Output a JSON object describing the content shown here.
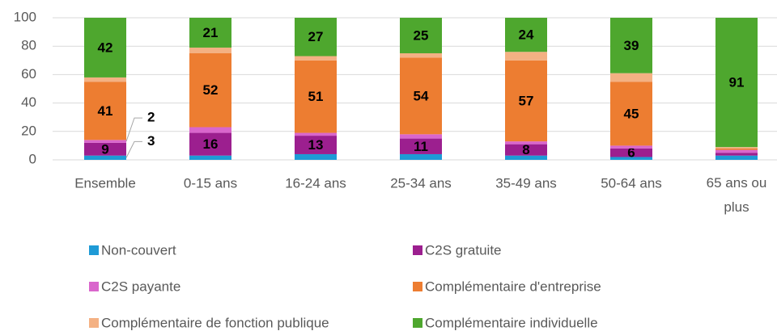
{
  "chart_data": {
    "type": "stacked_bar",
    "categories": [
      "Ensemble",
      "0-15 ans",
      "16-24 ans",
      "25-34 ans",
      "35-49 ans",
      "50-64 ans",
      "65 ans ou plus"
    ],
    "ylim": [
      0,
      100
    ],
    "yticks": [
      0,
      20,
      40,
      60,
      80,
      100
    ],
    "grid": true,
    "legend": "bottom",
    "series": [
      {
        "name": "Non-couvert",
        "color": "#1e9ad6",
        "values": [
          3,
          3,
          4,
          4,
          3,
          2,
          3
        ],
        "value_labels": [
          "3",
          null,
          null,
          null,
          null,
          null,
          null
        ]
      },
      {
        "name": "C2S gratuite",
        "color": "#9c1f8f",
        "values": [
          9,
          16,
          13,
          11,
          8,
          6,
          2
        ],
        "value_labels": [
          "9",
          "16",
          "13",
          "11",
          "8",
          "6",
          null
        ]
      },
      {
        "name": "C2S payante",
        "color": "#d966cc",
        "values": [
          2,
          4,
          2,
          3,
          2,
          2,
          2
        ],
        "value_labels": [
          "2",
          null,
          null,
          null,
          null,
          null,
          null
        ]
      },
      {
        "name": "Complémentaire d'entreprise",
        "color": "#ed7d31",
        "values": [
          41,
          52,
          51,
          54,
          57,
          45,
          1
        ],
        "value_labels": [
          "41",
          "52",
          "51",
          "54",
          "57",
          "45",
          null
        ]
      },
      {
        "name": "Complémentaire de fonction publique",
        "color": "#f4b183",
        "values": [
          3,
          4,
          3,
          3,
          6,
          6,
          1
        ],
        "value_labels": [
          null,
          null,
          null,
          null,
          null,
          null,
          null
        ]
      },
      {
        "name": "Complémentaire individuelle",
        "color": "#4ea72e",
        "values": [
          42,
          21,
          27,
          25,
          24,
          39,
          91
        ],
        "value_labels": [
          "42",
          "21",
          "27",
          "25",
          "24",
          "39",
          "91"
        ]
      }
    ]
  }
}
